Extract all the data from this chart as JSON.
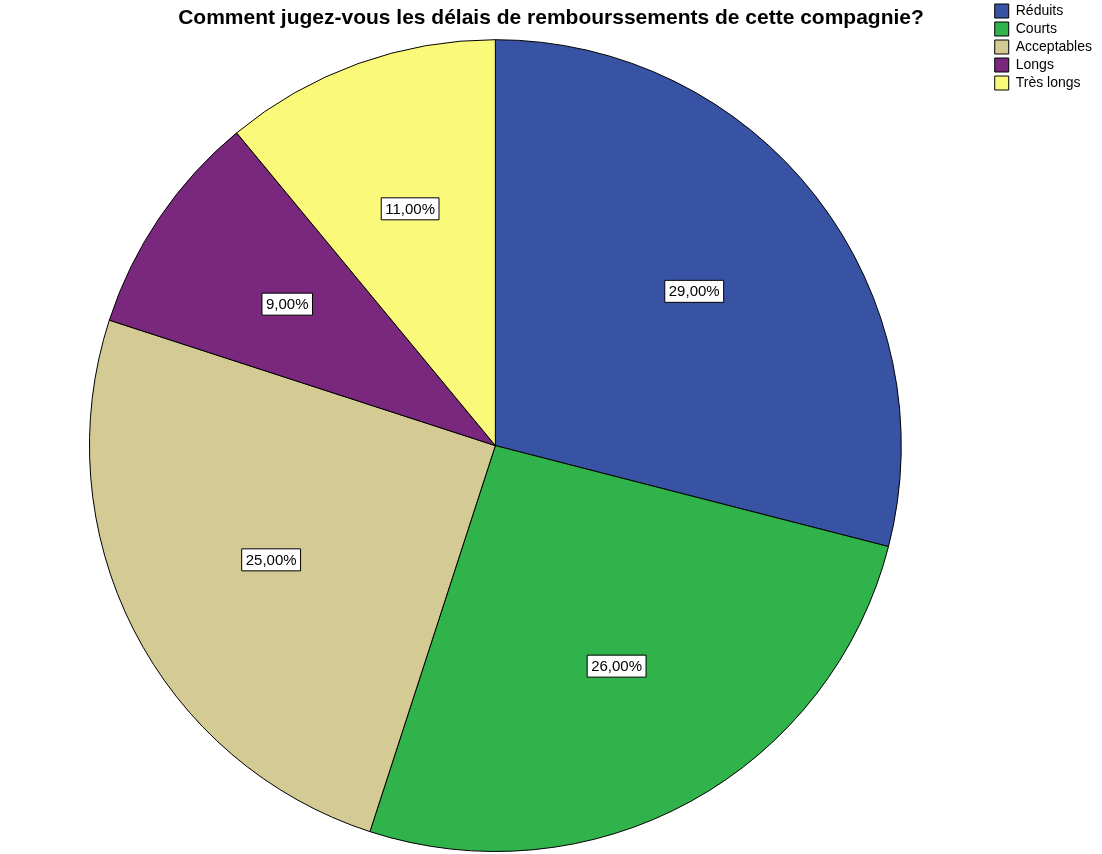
{
  "chart_data": {
    "type": "pie",
    "title": "Comment jugez-vous les délais de rembourssements de cette compagnie?",
    "categories": [
      "Réduits",
      "Courts",
      "Acceptables",
      "Longs",
      "Très longs"
    ],
    "values": [
      29,
      26,
      25,
      9,
      11
    ],
    "colors": [
      "#3953a4",
      "#2fb34a",
      "#d3ca94",
      "#79287e",
      "#fbf97a"
    ],
    "value_labels": [
      "29,00%",
      "26,00%",
      "25,00%",
      "9,00%",
      "11,00%"
    ],
    "legend": "top right"
  }
}
